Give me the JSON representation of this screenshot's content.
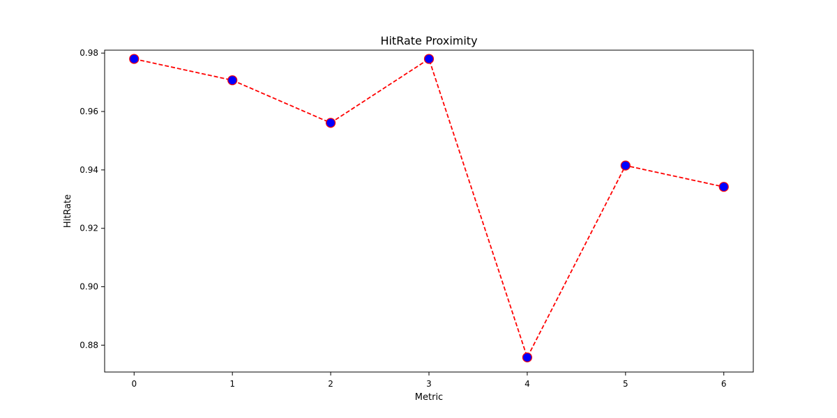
{
  "chart_data": {
    "type": "line",
    "title": "HitRate Proximity",
    "xlabel": "Metric",
    "ylabel": "HitRate",
    "x": [
      0,
      1,
      2,
      3,
      4,
      5,
      6
    ],
    "series": [
      {
        "values": [
          0.978,
          0.9707,
          0.9561,
          0.978,
          0.8758,
          0.9415,
          0.9342
        ]
      }
    ],
    "xlim": [
      -0.3,
      6.3
    ],
    "ylim": [
      0.8708,
      0.981
    ],
    "xticks": [
      "0",
      "1",
      "2",
      "3",
      "4",
      "5",
      "6"
    ],
    "yticks": [
      "0.88",
      "0.90",
      "0.92",
      "0.94",
      "0.96",
      "0.98"
    ],
    "ytick_values": [
      0.88,
      0.9,
      0.92,
      0.94,
      0.96,
      0.98
    ],
    "grid": false,
    "line_style": "dashed",
    "colors": {
      "line": "#ff0000",
      "marker_face": "#0000ff",
      "marker_edge": "#ff0000"
    }
  }
}
